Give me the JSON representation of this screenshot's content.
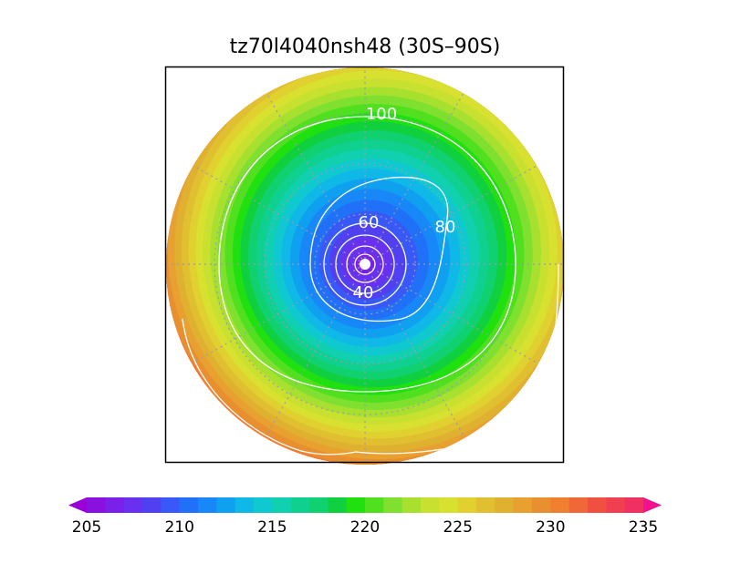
{
  "title": "tz70l4040nsh48 (30S–90S)",
  "contour_labels": [
    100,
    80,
    60,
    40
  ],
  "colorbar": {
    "lim": [
      205,
      235
    ],
    "ticks": [
      205,
      210,
      215,
      220,
      225,
      230,
      235
    ],
    "colors": [
      "#9a00d8",
      "#8a10e0",
      "#7a20e8",
      "#6a30f0",
      "#5040f0",
      "#3858f8",
      "#2070f8",
      "#1888f8",
      "#10a0f0",
      "#10b8e8",
      "#10c8d0",
      "#10d0b0",
      "#10d090",
      "#10d070",
      "#10d040",
      "#20e010",
      "#50e020",
      "#80e030",
      "#a8e030",
      "#c8e030",
      "#d8e030",
      "#e0d030",
      "#e0c030",
      "#e0b030",
      "#e8a030",
      "#e89030",
      "#f08030",
      "#f06838",
      "#f05040",
      "#f04050",
      "#f03060",
      "#f01090"
    ]
  }
}
